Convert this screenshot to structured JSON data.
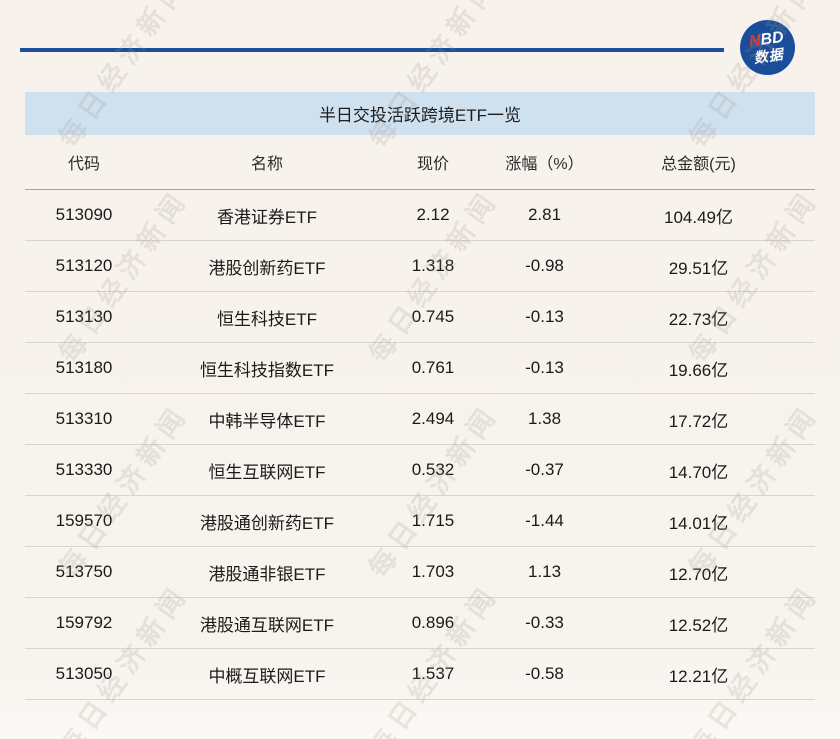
{
  "page": {
    "watermark_text": "每日经济新闻",
    "background_color": "#f7f3ed"
  },
  "colors": {
    "brand_blue": "#1b4e9b",
    "logo_red": "#e4322b",
    "title_bar_bg": "#cfe0ef",
    "header_border": "#a6a29c",
    "row_border": "#d9d5cf"
  },
  "logo": {
    "accent_letter": "N",
    "rest_letters": "BD",
    "subtext": "数据"
  },
  "chart_data": {
    "type": "table",
    "title": "半日交投活跃跨境ETF一览",
    "columns": [
      "代码",
      "名称",
      "现价",
      "涨幅（%）",
      "总金额(元)"
    ],
    "rows": [
      [
        "513090",
        "香港证券ETF",
        "2.12",
        "2.81",
        "104.49亿"
      ],
      [
        "513120",
        "港股创新药ETF",
        "1.318",
        "-0.98",
        "29.51亿"
      ],
      [
        "513130",
        "恒生科技ETF",
        "0.745",
        "-0.13",
        "22.73亿"
      ],
      [
        "513180",
        "恒生科技指数ETF",
        "0.761",
        "-0.13",
        "19.66亿"
      ],
      [
        "513310",
        "中韩半导体ETF",
        "2.494",
        "1.38",
        "17.72亿"
      ],
      [
        "513330",
        "恒生互联网ETF",
        "0.532",
        "-0.37",
        "14.70亿"
      ],
      [
        "159570",
        "港股通创新药ETF",
        "1.715",
        "-1.44",
        "14.01亿"
      ],
      [
        "513750",
        "港股通非银ETF",
        "1.703",
        "1.13",
        "12.70亿"
      ],
      [
        "159792",
        "港股通互联网ETF",
        "0.896",
        "-0.33",
        "12.52亿"
      ],
      [
        "513050",
        "中概互联网ETF",
        "1.537",
        "-0.58",
        "12.21亿"
      ]
    ]
  }
}
